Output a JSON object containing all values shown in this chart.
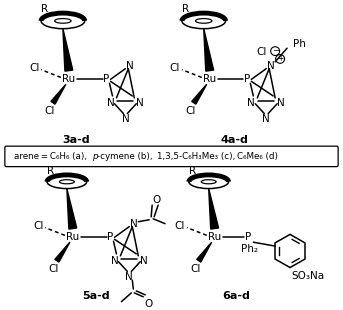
{
  "bg_color": "#ffffff",
  "label_3ad": "3a-d",
  "label_4ad": "4a-d",
  "label_5ad": "5a-d",
  "label_6ad": "6a-d",
  "fig_width": 3.43,
  "fig_height": 3.1,
  "dpi": 100
}
